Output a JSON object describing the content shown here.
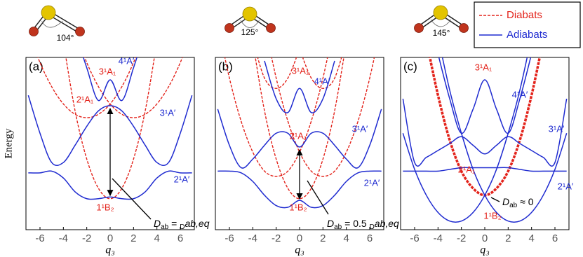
{
  "legend": [
    {
      "name": "Diabats",
      "color": "#e3231b",
      "style": "dashed"
    },
    {
      "name": "Adiabats",
      "color": "#1f2bd0",
      "style": "solid"
    }
  ],
  "chart_data": [
    {
      "type": "line",
      "panel": "(a)",
      "molecule_angle": "104°",
      "xlabel": "q₃",
      "ylabel": "Energy",
      "xlim": [
        -7.2,
        7.2
      ],
      "ylim": [
        0,
        10
      ],
      "xticks": [
        -6,
        -4,
        -2,
        0,
        2,
        4,
        6
      ],
      "double_arrow": true,
      "x": [
        -7,
        -6,
        -5,
        -4,
        -3,
        -2,
        -1,
        0,
        1,
        2,
        3,
        4,
        5,
        6,
        7
      ],
      "series": [
        {
          "color": "#e3231b",
          "style": "dashed",
          "values": [
            null,
            null,
            null,
            10.9,
            6.9,
            4.1,
            2.4,
            1.8,
            2.4,
            4.1,
            6.9,
            10.9,
            null,
            null,
            null
          ]
        },
        {
          "color": "#e3231b",
          "style": "dashed",
          "values": [
            11.5,
            9.7,
            8.3,
            7.3,
            6.7,
            6.5,
            6.7,
            7.3,
            8.3,
            9.7,
            11.5,
            null,
            null,
            null,
            null
          ]
        },
        {
          "color": "#e3231b",
          "style": "dashed",
          "values": [
            null,
            null,
            null,
            null,
            11.5,
            9.7,
            8.3,
            7.3,
            6.7,
            6.5,
            6.7,
            7.3,
            8.3,
            9.7,
            11.5
          ]
        },
        {
          "color": "#1f2bd0",
          "style": "solid",
          "values": [
            null,
            null,
            null,
            null,
            11.5,
            9.4,
            7.5,
            8.7,
            7.5,
            9.4,
            11.5,
            null,
            null,
            null,
            null
          ]
        },
        {
          "color": "#1f2bd0",
          "style": "solid",
          "values": [
            7.8,
            5.6,
            3.9,
            3.9,
            4.9,
            6.0,
            6.9,
            7.2,
            6.9,
            6.0,
            4.9,
            3.9,
            3.9,
            5.6,
            7.8
          ]
        },
        {
          "color": "#1f2bd0",
          "style": "solid",
          "values": [
            3.3,
            3.3,
            3.4,
            3.0,
            2.2,
            1.8,
            1.8,
            1.9,
            1.8,
            1.8,
            2.2,
            3.0,
            3.4,
            3.3,
            3.3
          ]
        }
      ],
      "annotations": [
        {
          "text": "3¹A₁",
          "color": "#e3231b"
        },
        {
          "text": "4¹A′",
          "color": "#1f2bd0"
        },
        {
          "text": "2¹A₁",
          "color": "#e3231b"
        },
        {
          "text": "3¹A′",
          "color": "#1f2bd0"
        },
        {
          "text": "2¹A′",
          "color": "#1f2bd0"
        },
        {
          "text": "1¹B₂",
          "color": "#e3231b"
        }
      ],
      "coupling": [
        "D",
        "ab",
        " = ",
        "D",
        "ab,eq"
      ]
    },
    {
      "type": "line",
      "panel": "(b)",
      "molecule_angle": "125°",
      "xlabel": "q₃",
      "xlim": [
        -7.2,
        7.2
      ],
      "ylim": [
        0,
        10
      ],
      "xticks": [
        -6,
        -4,
        -2,
        0,
        2,
        4,
        6
      ],
      "double_arrow": true,
      "x": [
        -7,
        -6,
        -5,
        -4,
        -3,
        -2,
        -1,
        0,
        1,
        2,
        3,
        4,
        5,
        6,
        7
      ],
      "series": [
        {
          "color": "#e3231b",
          "style": "dashed",
          "values": [
            null,
            null,
            null,
            10.9,
            6.9,
            4.1,
            2.4,
            1.8,
            2.4,
            4.1,
            6.9,
            10.9,
            null,
            null,
            null
          ]
        },
        {
          "color": "#e3231b",
          "style": "dashed",
          "values": [
            12.0,
            8.8,
            6.3,
            4.5,
            3.4,
            3.1,
            3.4,
            4.5,
            6.3,
            8.8,
            12.0,
            null,
            null,
            null,
            null
          ]
        },
        {
          "color": "#e3231b",
          "style": "dashed",
          "values": [
            null,
            null,
            null,
            null,
            12.0,
            8.8,
            6.3,
            4.5,
            3.4,
            3.1,
            3.4,
            4.5,
            6.3,
            8.8,
            12.0
          ]
        },
        {
          "color": "#e3231b",
          "style": "dashed",
          "values": [
            null,
            null,
            null,
            11.0,
            8.8,
            8.2,
            8.8,
            10.5,
            null,
            null,
            null,
            null,
            null,
            null,
            null
          ]
        },
        {
          "color": "#e3231b",
          "style": "dashed",
          "values": [
            null,
            null,
            null,
            null,
            null,
            null,
            null,
            10.5,
            8.8,
            8.2,
            8.8,
            11.0,
            null,
            null,
            null
          ]
        },
        {
          "color": "#1f2bd0",
          "style": "solid",
          "values": [
            null,
            null,
            null,
            null,
            9.8,
            7.6,
            6.8,
            8.2,
            6.8,
            7.6,
            9.8,
            null,
            null,
            null,
            null
          ]
        },
        {
          "color": "#1f2bd0",
          "style": "solid",
          "values": [
            7.0,
            4.9,
            3.6,
            4.1,
            4.9,
            5.6,
            5.6,
            4.8,
            5.6,
            5.6,
            4.9,
            4.1,
            3.6,
            4.9,
            7.0
          ]
        },
        {
          "color": "#1f2bd0",
          "style": "solid",
          "values": [
            3.4,
            3.4,
            3.3,
            2.8,
            2.0,
            1.4,
            1.3,
            1.7,
            1.3,
            1.4,
            2.0,
            2.8,
            3.3,
            3.4,
            3.4
          ]
        }
      ],
      "annotations": [
        {
          "text": "3¹A₁",
          "color": "#e3231b"
        },
        {
          "text": "4¹A′",
          "color": "#1f2bd0"
        },
        {
          "text": "2¹A₁",
          "color": "#e3231b"
        },
        {
          "text": "3¹A′",
          "color": "#1f2bd0"
        },
        {
          "text": "2¹A′",
          "color": "#1f2bd0"
        },
        {
          "text": "1¹B₂",
          "color": "#e3231b"
        }
      ],
      "coupling": [
        "D",
        "ab",
        " = 0.5 ",
        "D",
        "ab,eq"
      ]
    },
    {
      "type": "line",
      "panel": "(c)",
      "molecule_angle": "145°",
      "xlabel": "q₃",
      "xlim": [
        -7.2,
        7.2
      ],
      "ylim": [
        0,
        10
      ],
      "xticks": [
        -6,
        -4,
        -2,
        0,
        2,
        4,
        6
      ],
      "double_arrow": false,
      "x": [
        -7,
        -6,
        -5,
        -4,
        -3,
        -2,
        -1,
        0,
        1,
        2,
        3,
        4,
        5,
        6,
        7
      ],
      "series": [
        {
          "color": "#e3231b",
          "style": "thick",
          "values": [
            null,
            null,
            11.0,
            7.8,
            5.2,
            3.4,
            2.4,
            2.0,
            2.4,
            3.4,
            5.2,
            7.8,
            11.0,
            null,
            null
          ]
        },
        {
          "color": "#1f2bd0",
          "style": "solid",
          "values": [
            5.6,
            3.5,
            2.0,
            1.0,
            0.5,
            0.5,
            1.0,
            2.0,
            3.5,
            5.6,
            8.1,
            11.2,
            null,
            null,
            null
          ]
        },
        {
          "color": "#1f2bd0",
          "style": "solid",
          "values": [
            null,
            null,
            null,
            11.2,
            8.1,
            5.6,
            3.5,
            2.0,
            1.0,
            0.5,
            0.5,
            1.0,
            2.0,
            3.5,
            5.6
          ]
        },
        {
          "color": "#1f2bd0",
          "style": "solid",
          "values": [
            null,
            null,
            null,
            10.2,
            7.6,
            5.6,
            7.0,
            8.7,
            7.0,
            5.6,
            7.6,
            10.2,
            null,
            null,
            null
          ]
        },
        {
          "color": "#1f2bd0",
          "style": "solid",
          "values": [
            7.6,
            3.9,
            4.2,
            4.6,
            5.0,
            5.4,
            4.9,
            4.4,
            4.9,
            5.4,
            5.0,
            4.6,
            4.2,
            3.9,
            7.6
          ]
        },
        {
          "color": "#1f2bd0",
          "style": "solid",
          "values": [
            3.4,
            3.4,
            3.4,
            3.4,
            3.5,
            3.6,
            3.6,
            3.6,
            3.6,
            3.6,
            3.5,
            3.4,
            3.4,
            3.4,
            3.4
          ]
        }
      ],
      "annotations": [
        {
          "text": "3¹A₁",
          "color": "#e3231b"
        },
        {
          "text": "4¹A′",
          "color": "#1f2bd0"
        },
        {
          "text": "2¹A₁",
          "color": "#e3231b"
        },
        {
          "text": "3¹A′",
          "color": "#1f2bd0"
        },
        {
          "text": "2¹A′",
          "color": "#1f2bd0"
        },
        {
          "text": "1¹B₂",
          "color": "#e3231b"
        }
      ],
      "coupling": [
        "D",
        "ab",
        " ≈ 0"
      ]
    }
  ]
}
